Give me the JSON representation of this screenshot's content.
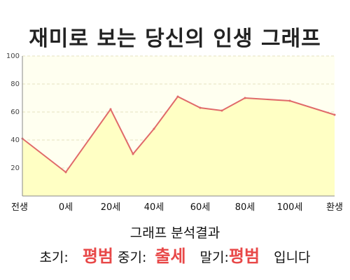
{
  "chart_data": {
    "type": "area",
    "title": "재미로 보는 당신의 인생 그래프",
    "x_ticks": [
      "전생",
      "0세",
      "20세",
      "40세",
      "60세",
      "80세",
      "100세",
      "환생"
    ],
    "x": [
      "전생",
      "0세",
      "20세",
      "30세",
      "40세",
      "50세",
      "60세",
      "70세",
      "80세",
      "100세",
      "환생"
    ],
    "values": [
      41,
      17,
      62,
      30,
      48,
      71,
      63,
      61,
      70,
      68,
      58
    ],
    "ylim": [
      0,
      100
    ],
    "y_ticks": [
      20,
      40,
      60,
      80,
      100
    ],
    "grid": true,
    "line_color": "#e06a6a",
    "fill_color": "#ffffc4",
    "background_color": "#fffff0"
  },
  "result": {
    "heading": "그래프 분석결과",
    "early_label": "초기:",
    "early_value": "평범",
    "middle_label": "중기:",
    "middle_value": "출세",
    "late_label": "말기:",
    "late_value": "평범",
    "suffix": "입니다",
    "highlight_color": "#e84848"
  }
}
